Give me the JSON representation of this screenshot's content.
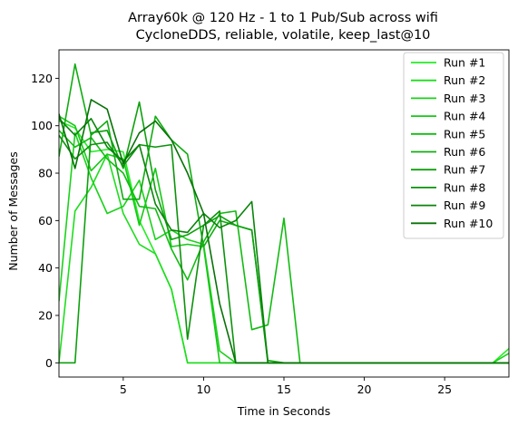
{
  "chart_data": {
    "type": "line",
    "title": "Array60k @ 120 Hz - 1 to 1 Pub/Sub across wifi",
    "subtitle": "CycloneDDS, reliable, volatile, keep_last@10",
    "xlabel": "Time in Seconds",
    "ylabel": "Number of Messages",
    "xlim": [
      1,
      29
    ],
    "ylim": [
      -6,
      132
    ],
    "xticks": [
      5,
      10,
      15,
      20,
      25
    ],
    "yticks": [
      0,
      20,
      40,
      60,
      80,
      100,
      120
    ],
    "grid": false,
    "legend_position": "top-right",
    "series": [
      {
        "name": "Run #1",
        "color": "#22ee22",
        "x": [
          1,
          2,
          3,
          4,
          5,
          6,
          7,
          8,
          9,
          10,
          11,
          12,
          13,
          14,
          15,
          16,
          17,
          18,
          19,
          20,
          21,
          22,
          23,
          24,
          25,
          26,
          27,
          28,
          29
        ],
        "y": [
          102,
          99,
          89,
          90,
          89,
          60,
          46,
          31,
          0,
          0,
          0,
          0,
          0,
          0,
          0,
          0,
          0,
          0,
          0,
          0,
          0,
          0,
          0,
          0,
          0,
          0,
          0,
          0,
          6
        ]
      },
      {
        "name": "Run #2",
        "color": "#1edd1e",
        "x": [
          1,
          2,
          3,
          4,
          5,
          6,
          7,
          8,
          9,
          10,
          11,
          12,
          13,
          14,
          15,
          16,
          17,
          18,
          19,
          20,
          21,
          22,
          23,
          24,
          25,
          26,
          27,
          28,
          29
        ],
        "y": [
          0,
          64,
          74,
          88,
          63,
          50,
          46,
          31,
          0,
          0,
          0,
          0,
          0,
          0,
          0,
          0,
          0,
          0,
          0,
          0,
          0,
          0,
          0,
          0,
          0,
          0,
          0,
          0,
          0
        ]
      },
      {
        "name": "Run #3",
        "color": "#1ad21a",
        "x": [
          1,
          2,
          3,
          4,
          5,
          6,
          7,
          8,
          9,
          10,
          11,
          12,
          13,
          14,
          15,
          16,
          17,
          18,
          19,
          20,
          21,
          22,
          23,
          24,
          25,
          26,
          27,
          28,
          29
        ],
        "y": [
          26,
          97,
          78,
          63,
          66,
          77,
          52,
          56,
          52,
          50,
          5,
          0,
          0,
          0,
          0,
          0,
          0,
          0,
          0,
          0,
          0,
          0,
          0,
          0,
          0,
          0,
          0,
          0,
          4
        ]
      },
      {
        "name": "Run #4",
        "color": "#16c816",
        "x": [
          1,
          2,
          3,
          4,
          5,
          6,
          7,
          8,
          9,
          10,
          11,
          12,
          13,
          14,
          15,
          16,
          17,
          18,
          19,
          20,
          21,
          22,
          23,
          24,
          25,
          26,
          27,
          28,
          29
        ],
        "y": [
          104,
          100,
          81,
          88,
          86,
          58,
          82,
          49,
          50,
          49,
          0,
          0,
          0,
          0,
          0,
          0,
          0,
          0,
          0,
          0,
          0,
          0,
          0,
          0,
          0,
          0,
          0,
          0,
          0
        ]
      },
      {
        "name": "Run #5",
        "color": "#12bb12",
        "x": [
          1,
          2,
          3,
          4,
          5,
          6,
          7,
          8,
          9,
          10,
          11,
          12,
          13,
          14,
          15,
          16,
          17,
          18,
          19,
          20,
          21,
          22,
          23,
          24,
          25,
          26,
          27,
          28,
          29
        ],
        "y": [
          98,
          91,
          95,
          86,
          80,
          66,
          65,
          48,
          35,
          51,
          63,
          64,
          14,
          16,
          61,
          0,
          0,
          0,
          0,
          0,
          0,
          0,
          0,
          0,
          0,
          0,
          0,
          0,
          0
        ]
      },
      {
        "name": "Run #6",
        "color": "#10ad10",
        "x": [
          1,
          2,
          3,
          4,
          5,
          6,
          7,
          8,
          9,
          10,
          11,
          12,
          13,
          14,
          15,
          16,
          17,
          18,
          19,
          20,
          21,
          22,
          23,
          24,
          25,
          26,
          27,
          28,
          29
        ],
        "y": [
          87,
          126,
          96,
          102,
          69,
          69,
          104,
          94,
          88,
          49,
          60,
          58,
          56,
          1,
          0,
          0,
          0,
          0,
          0,
          0,
          0,
          0,
          0,
          0,
          0,
          0,
          0,
          0,
          0
        ]
      },
      {
        "name": "Run #7",
        "color": "#0ea00e",
        "x": [
          1,
          2,
          3,
          4,
          5,
          6,
          7,
          8,
          9,
          10,
          11,
          12,
          13,
          14,
          15,
          16,
          17,
          18,
          19,
          20,
          21,
          22,
          23,
          24,
          25,
          26,
          27,
          28,
          29
        ],
        "y": [
          0,
          0,
          97,
          98,
          82,
          110,
          73,
          52,
          54,
          58,
          62,
          58,
          56,
          0,
          0,
          0,
          0,
          0,
          0,
          0,
          0,
          0,
          0,
          0,
          0,
          0,
          0,
          0,
          0
        ]
      },
      {
        "name": "Run #8",
        "color": "#0c920c",
        "x": [
          1,
          2,
          3,
          4,
          5,
          6,
          7,
          8,
          9,
          10,
          11,
          12,
          13,
          14,
          15,
          16,
          17,
          18,
          19,
          20,
          21,
          22,
          23,
          24,
          25,
          26,
          27,
          28,
          29
        ],
        "y": [
          96,
          86,
          92,
          93,
          83,
          92,
          91,
          92,
          10,
          58,
          64,
          0,
          0,
          0,
          0,
          0,
          0,
          0,
          0,
          0,
          0,
          0,
          0,
          0,
          0,
          0,
          0,
          0,
          0
        ]
      },
      {
        "name": "Run #9",
        "color": "#0a840a",
        "x": [
          1,
          2,
          3,
          4,
          5,
          6,
          7,
          8,
          9,
          10,
          11,
          12,
          13,
          14,
          15,
          16,
          17,
          18,
          19,
          20,
          21,
          22,
          23,
          24,
          25,
          26,
          27,
          28,
          29
        ],
        "y": [
          103,
          96,
          103,
          91,
          85,
          92,
          67,
          56,
          55,
          63,
          57,
          60,
          68,
          0,
          0,
          0,
          0,
          0,
          0,
          0,
          0,
          0,
          0,
          0,
          0,
          0,
          0,
          0,
          0
        ]
      },
      {
        "name": "Run #10",
        "color": "#087208",
        "x": [
          1,
          2,
          3,
          4,
          5,
          6,
          7,
          8,
          9,
          10,
          11,
          12,
          13,
          14,
          15,
          16,
          17,
          18,
          19,
          20,
          21,
          22,
          23,
          24,
          25,
          26,
          27,
          28,
          29
        ],
        "y": [
          105,
          82,
          111,
          107,
          84,
          97,
          102,
          94,
          80,
          63,
          25,
          0,
          0,
          0,
          0,
          0,
          0,
          0,
          0,
          0,
          0,
          0,
          0,
          0,
          0,
          0,
          0,
          0,
          0
        ]
      }
    ]
  }
}
